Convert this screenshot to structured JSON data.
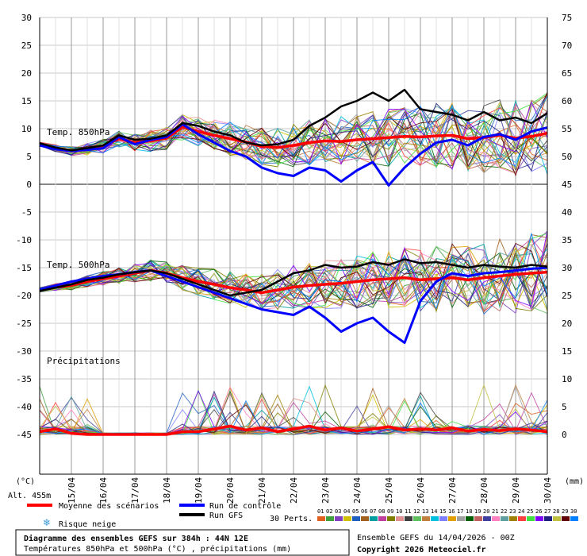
{
  "chart_data": {
    "type": "line",
    "title": "Diagramme des ensembles GEFS sur 384h : 44N 12E",
    "subtitle": "Températures 850hPa et 500hPa (°C) , précipitations (mm)",
    "left_axis": {
      "unit": "(°C)",
      "ticks": [
        "30",
        "25",
        "20",
        "15",
        "10",
        "5",
        "0",
        "-5",
        "-10",
        "-15",
        "-20",
        "-25",
        "-30",
        "-35",
        "-40",
        "-45"
      ],
      "ylim": [
        -45,
        30
      ]
    },
    "right_axis": {
      "unit": "(mm)",
      "ticks": [
        "75",
        "70",
        "65",
        "60",
        "55",
        "50",
        "45",
        "40",
        "35",
        "30",
        "25",
        "20",
        "15",
        "10",
        "5",
        "0"
      ],
      "ylim": [
        0,
        75
      ]
    },
    "x_ticks": [
      "15/04",
      "16/04",
      "17/04",
      "18/04",
      "19/04",
      "20/04",
      "21/04",
      "22/04",
      "23/04",
      "24/04",
      "25/04",
      "26/04",
      "27/04",
      "28/04",
      "29/04",
      "30/04"
    ],
    "section_labels": {
      "t850": "Temp. 850hPa",
      "t500": "Temp. 500hPa",
      "precip": "Précipitations"
    },
    "altitude": "Alt. 455m",
    "legend": {
      "mean": "Moyenne des scénarios",
      "control": "Run de contrôle",
      "gfs": "Run GFS",
      "snow": "Risque neige",
      "perts": "30 Perts.",
      "pert_numbers": [
        "01",
        "02",
        "03",
        "04",
        "05",
        "06",
        "07",
        "08",
        "09",
        "10",
        "11",
        "12",
        "13",
        "14",
        "15",
        "16",
        "17",
        "18",
        "19",
        "20",
        "21",
        "22",
        "23",
        "24",
        "25",
        "26",
        "27",
        "28",
        "29",
        "30"
      ]
    },
    "pert_colors": [
      "#e06020",
      "#40a040",
      "#8040c0",
      "#d0c000",
      "#2060c0",
      "#a06020",
      "#00a0a0",
      "#c040a0",
      "#808000",
      "#e09090",
      "#404040",
      "#60c060",
      "#c08040",
      "#00c0e0",
      "#8080ff",
      "#e0a000",
      "#a0a0a0",
      "#006000",
      "#c06060",
      "#4040a0",
      "#ff80c0",
      "#60a0a0",
      "#a08000",
      "#ff4040",
      "#40e040",
      "#8000ff",
      "#202080",
      "#c0c040",
      "#600000",
      "#0080ff"
    ],
    "info_left_date": "Ensemble GEFS du 14/04/2026 - 00Z",
    "copyright": "Copyright 2026 Meteociel.fr",
    "series": [
      {
        "name": "Moyenne des scénarios",
        "group": "t850",
        "x": [
          0,
          2,
          4,
          6,
          8,
          10,
          12,
          14,
          16,
          18,
          20,
          22,
          24,
          26,
          28,
          30,
          32,
          34,
          36,
          38,
          40,
          42,
          44,
          46,
          48,
          50,
          52,
          54,
          56,
          58,
          60,
          62,
          64
        ],
        "values": [
          7.2,
          6.5,
          6.0,
          6.3,
          6.8,
          8.2,
          7.5,
          7.8,
          8.3,
          10.3,
          9.5,
          8.8,
          8.2,
          7.6,
          6.8,
          6.6,
          7.0,
          7.5,
          7.8,
          7.7,
          8.0,
          8.2,
          8.4,
          8.6,
          8.5,
          8.7,
          8.8,
          8.2,
          8.4,
          8.8,
          8.3,
          8.6,
          9.2
        ]
      },
      {
        "name": "Run de contrôle",
        "group": "t850",
        "x": [
          0,
          2,
          4,
          6,
          8,
          10,
          12,
          14,
          16,
          18,
          20,
          22,
          24,
          26,
          28,
          30,
          32,
          34,
          36,
          38,
          40,
          42,
          44,
          46,
          48,
          50,
          52,
          54,
          56,
          58,
          60,
          62,
          64
        ],
        "values": [
          7.0,
          6.3,
          6.0,
          6.2,
          6.5,
          8.5,
          7.2,
          8.0,
          8.5,
          10.8,
          9.0,
          7.5,
          6.0,
          5.0,
          3.0,
          2.0,
          1.5,
          3.0,
          2.5,
          0.5,
          2.5,
          4.0,
          -0.2,
          3.0,
          5.5,
          7.5,
          8.0,
          7.0,
          8.5,
          9.0,
          8.0,
          9.5,
          10.2
        ]
      },
      {
        "name": "Run GFS",
        "group": "t850",
        "x": [
          0,
          2,
          4,
          6,
          8,
          10,
          12,
          14,
          16,
          18,
          20,
          22,
          24,
          26,
          28,
          30,
          32,
          34,
          36,
          38,
          40,
          42,
          44,
          46,
          48,
          50,
          52,
          54,
          56,
          58,
          60,
          62,
          64
        ],
        "values": [
          7.4,
          6.6,
          6.1,
          6.5,
          7.0,
          8.8,
          8.0,
          8.2,
          8.8,
          11.0,
          10.5,
          9.5,
          8.8,
          7.5,
          7.0,
          7.2,
          8.0,
          10.5,
          12.0,
          14.0,
          15.0,
          16.5,
          15.0,
          17.0,
          13.5,
          13.0,
          12.5,
          11.5,
          13.0,
          11.5,
          12.0,
          11.0,
          12.8
        ]
      },
      {
        "name": "Moyenne des scénarios",
        "group": "t500",
        "x": [
          0,
          2,
          4,
          6,
          8,
          10,
          12,
          14,
          16,
          18,
          20,
          22,
          24,
          26,
          28,
          30,
          32,
          34,
          36,
          38,
          40,
          42,
          44,
          46,
          48,
          50,
          52,
          54,
          56,
          58,
          60,
          62,
          64
        ],
        "values": [
          -19.0,
          -18.5,
          -18.2,
          -17.5,
          -17.0,
          -16.5,
          -16.0,
          -15.5,
          -16.0,
          -16.8,
          -17.5,
          -18.0,
          -18.6,
          -19.0,
          -19.5,
          -19.0,
          -18.5,
          -18.2,
          -18.0,
          -17.8,
          -17.5,
          -17.2,
          -17.0,
          -16.8,
          -17.2,
          -17.0,
          -16.8,
          -17.2,
          -16.8,
          -16.5,
          -16.2,
          -16.0,
          -15.8
        ]
      },
      {
        "name": "Run de contrôle",
        "group": "t500",
        "x": [
          0,
          2,
          4,
          6,
          8,
          10,
          12,
          14,
          16,
          18,
          20,
          22,
          24,
          26,
          28,
          30,
          32,
          34,
          36,
          38,
          40,
          42,
          44,
          46,
          48,
          50,
          52,
          54,
          56,
          58,
          60,
          62,
          64
        ],
        "values": [
          -19.0,
          -18.2,
          -17.5,
          -17.0,
          -16.5,
          -16.2,
          -15.8,
          -15.5,
          -16.5,
          -17.5,
          -18.5,
          -19.5,
          -20.5,
          -21.5,
          -22.5,
          -23.0,
          -23.5,
          -22.0,
          -24.0,
          -26.5,
          -25.0,
          -24.0,
          -26.5,
          -28.5,
          -21.0,
          -17.5,
          -16.0,
          -16.5,
          -16.0,
          -15.8,
          -15.5,
          -15.2,
          -15.0
        ]
      },
      {
        "name": "Run GFS",
        "group": "t500",
        "x": [
          0,
          2,
          4,
          6,
          8,
          10,
          12,
          14,
          16,
          18,
          20,
          22,
          24,
          26,
          28,
          30,
          32,
          34,
          36,
          38,
          40,
          42,
          44,
          46,
          48,
          50,
          52,
          54,
          56,
          58,
          60,
          62,
          64
        ],
        "values": [
          -19.2,
          -18.6,
          -18.0,
          -17.2,
          -16.8,
          -16.2,
          -15.8,
          -15.5,
          -16.0,
          -17.0,
          -18.0,
          -19.0,
          -20.0,
          -19.5,
          -19.0,
          -17.5,
          -16.0,
          -15.5,
          -14.5,
          -15.0,
          -14.8,
          -14.0,
          -14.5,
          -13.5,
          -14.2,
          -14.0,
          -14.5,
          -15.0,
          -14.5,
          -14.8,
          -15.0,
          -14.5,
          -14.8
        ]
      },
      {
        "name": "Moyenne des scénarios",
        "group": "precip",
        "x": [
          0,
          2,
          4,
          6,
          8,
          10,
          12,
          14,
          16,
          18,
          20,
          22,
          24,
          26,
          28,
          30,
          32,
          34,
          36,
          38,
          40,
          42,
          44,
          46,
          48,
          50,
          52,
          54,
          56,
          58,
          60,
          62,
          64
        ],
        "values": [
          0.5,
          1.0,
          0.2,
          0.0,
          0.0,
          0.0,
          0.0,
          0.0,
          0.0,
          0.5,
          0.5,
          1.0,
          1.5,
          0.8,
          1.2,
          0.5,
          1.0,
          1.5,
          0.8,
          1.2,
          0.6,
          1.0,
          1.4,
          0.8,
          1.0,
          0.8,
          1.2,
          0.6,
          0.9,
          0.7,
          1.0,
          0.8,
          0.5
        ]
      }
    ]
  }
}
